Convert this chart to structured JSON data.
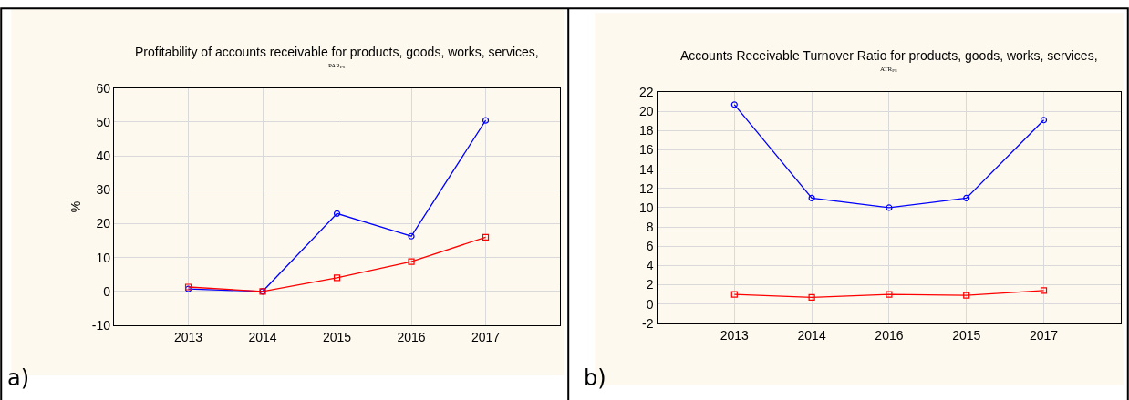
{
  "chart_data": [
    {
      "type": "line",
      "title": "Profitability of accounts receivable for products, goods, works, services,",
      "subtitle": "PAR$_{PS}$",
      "ylabel": "%",
      "annotations": [
        "a)"
      ],
      "categories": [
        "2013",
        "2014",
        "2015",
        "2016",
        "2017"
      ],
      "series": [
        {
          "color": "#0000ff",
          "marker": "circle",
          "values": [
            0.7,
            0,
            23,
            16.3,
            50.5
          ]
        },
        {
          "color": "#ff0000",
          "marker": "square",
          "values": [
            1.3,
            0,
            4,
            8.8,
            16
          ]
        }
      ],
      "ylim": [
        -10,
        60
      ],
      "yticks": [
        -10,
        0,
        10,
        20,
        30,
        40,
        50,
        60
      ],
      "grid": true,
      "line_style": "solid"
    },
    {
      "type": "line",
      "title": "Accounts Receivable Turnover Ratio for products, goods, works, services,",
      "subtitle": "ATR$_{PS}$",
      "annotations": [
        "b)"
      ],
      "categories": [
        "2013",
        "2014",
        "2016",
        "2015",
        "2017"
      ],
      "series": [
        {
          "color": "#0000ff",
          "marker": "circle",
          "values": [
            20.7,
            11,
            10,
            11,
            19.1
          ]
        },
        {
          "color": "#ff0000",
          "marker": "square",
          "values": [
            1.0,
            0.7,
            1.0,
            0.9,
            1.4
          ]
        }
      ],
      "ylim": [
        -2,
        22
      ],
      "yticks": [
        -2,
        0,
        2,
        4,
        6,
        8,
        10,
        12,
        14,
        16,
        18,
        20,
        22
      ],
      "grid": true,
      "line_style": "solid"
    }
  ]
}
